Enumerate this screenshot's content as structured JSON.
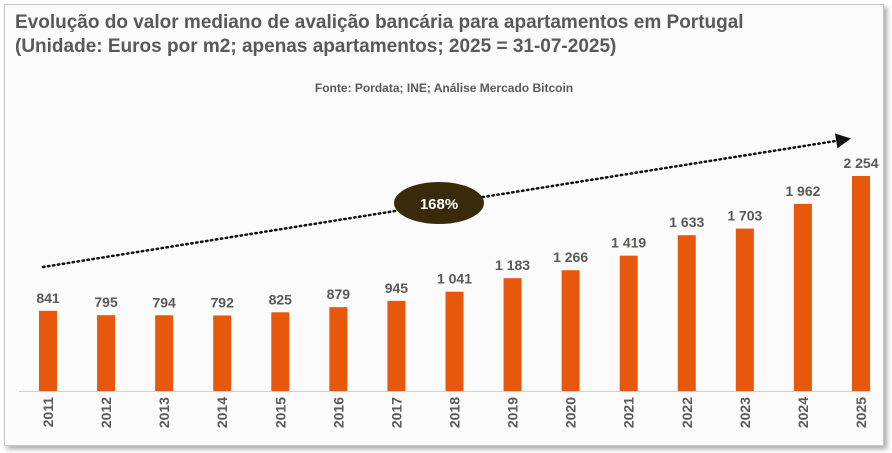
{
  "title_line1": "Evolução do valor mediano de avalição bancária para apartamentos em Portugal",
  "title_line2": "(Unidade: Euros por m2; apenas apartamentos; 2025 = 31-07-2025)",
  "source": "Fonte: Pordata; INE; Análise Mercado Bitcoin",
  "colors": {
    "bar": "#e8580c",
    "text": "#595959",
    "badge": "#3a2a0c",
    "badge_text": "#ffffff"
  },
  "chart_data": {
    "type": "bar",
    "title": "Evolução do valor mediano de avalição bancária para apartamentos em Portugal",
    "subtitle": "(Unidade: Euros por m2; apenas apartamentos; 2025 = 31-07-2025)",
    "categories": [
      "2011",
      "2012",
      "2013",
      "2014",
      "2015",
      "2016",
      "2017",
      "2018",
      "2019",
      "2020",
      "2021",
      "2022",
      "2023",
      "2024",
      "2025"
    ],
    "values": [
      841,
      795,
      794,
      792,
      825,
      879,
      945,
      1041,
      1183,
      1266,
      1419,
      1633,
      1703,
      1962,
      2254
    ],
    "value_labels": [
      "841",
      "795",
      "794",
      "792",
      "825",
      "879",
      "945",
      "1 041",
      "1 183",
      "1 266",
      "1 419",
      "1 633",
      "1 703",
      "1 962",
      "2 254"
    ],
    "xlabel": "",
    "ylabel": "",
    "ylim": [
      0,
      2254
    ],
    "grid": false,
    "annotations": [
      {
        "type": "trend-arrow",
        "from": "2011",
        "to": "2025",
        "label": "168%"
      }
    ]
  }
}
